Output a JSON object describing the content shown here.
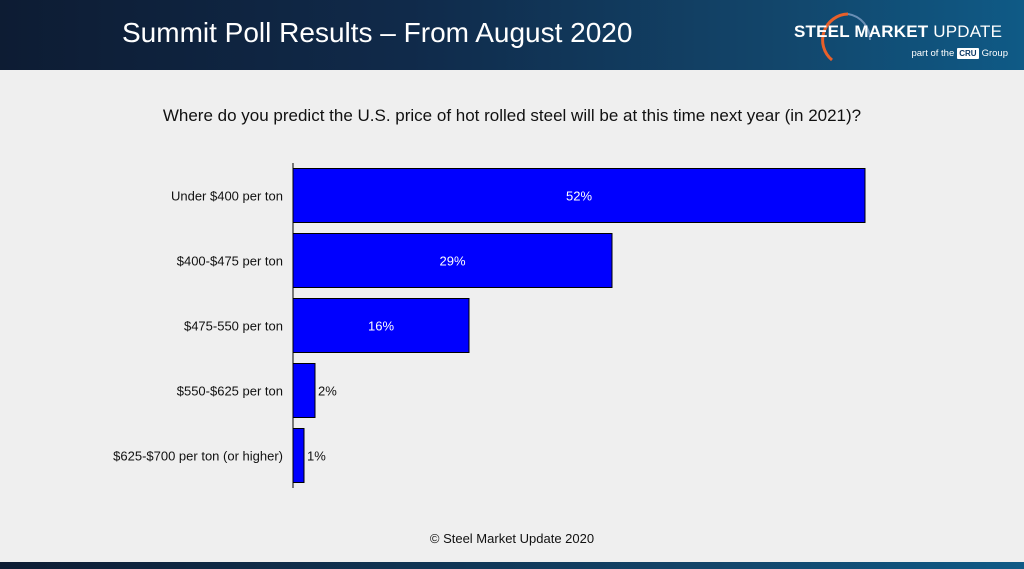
{
  "header": {
    "title": "Summit Poll Results – From August 2020",
    "logo_text_bold": "STEEL MARKET",
    "logo_text_light": "UPDATE",
    "logo_sub_prefix": "part of the",
    "logo_sub_badge": "CRU",
    "logo_sub_suffix": "Group"
  },
  "colors": {
    "bar_fill": "#0000ff",
    "bar_stroke": "#000000",
    "header_bg": "#0f2a4a",
    "logo_accent": "#e8602a"
  },
  "chart_data": {
    "type": "bar",
    "orientation": "horizontal",
    "title": "Where do you predict the U.S. price of hot rolled steel will be at this time next year (in 2021)?",
    "categories": [
      "Under $400 per ton",
      "$400-$475 per ton",
      "$475-550 per ton",
      "$550-$625 per ton",
      "$625-$700 per ton (or higher)"
    ],
    "values": [
      52,
      29,
      16,
      2,
      1
    ],
    "value_labels": [
      "52%",
      "29%",
      "16%",
      "2%",
      "1%"
    ],
    "unit": "%",
    "xlim": [
      0,
      60
    ],
    "grid": false,
    "legend": "none"
  },
  "footer": {
    "copyright": "© Steel Market Update 2020"
  }
}
